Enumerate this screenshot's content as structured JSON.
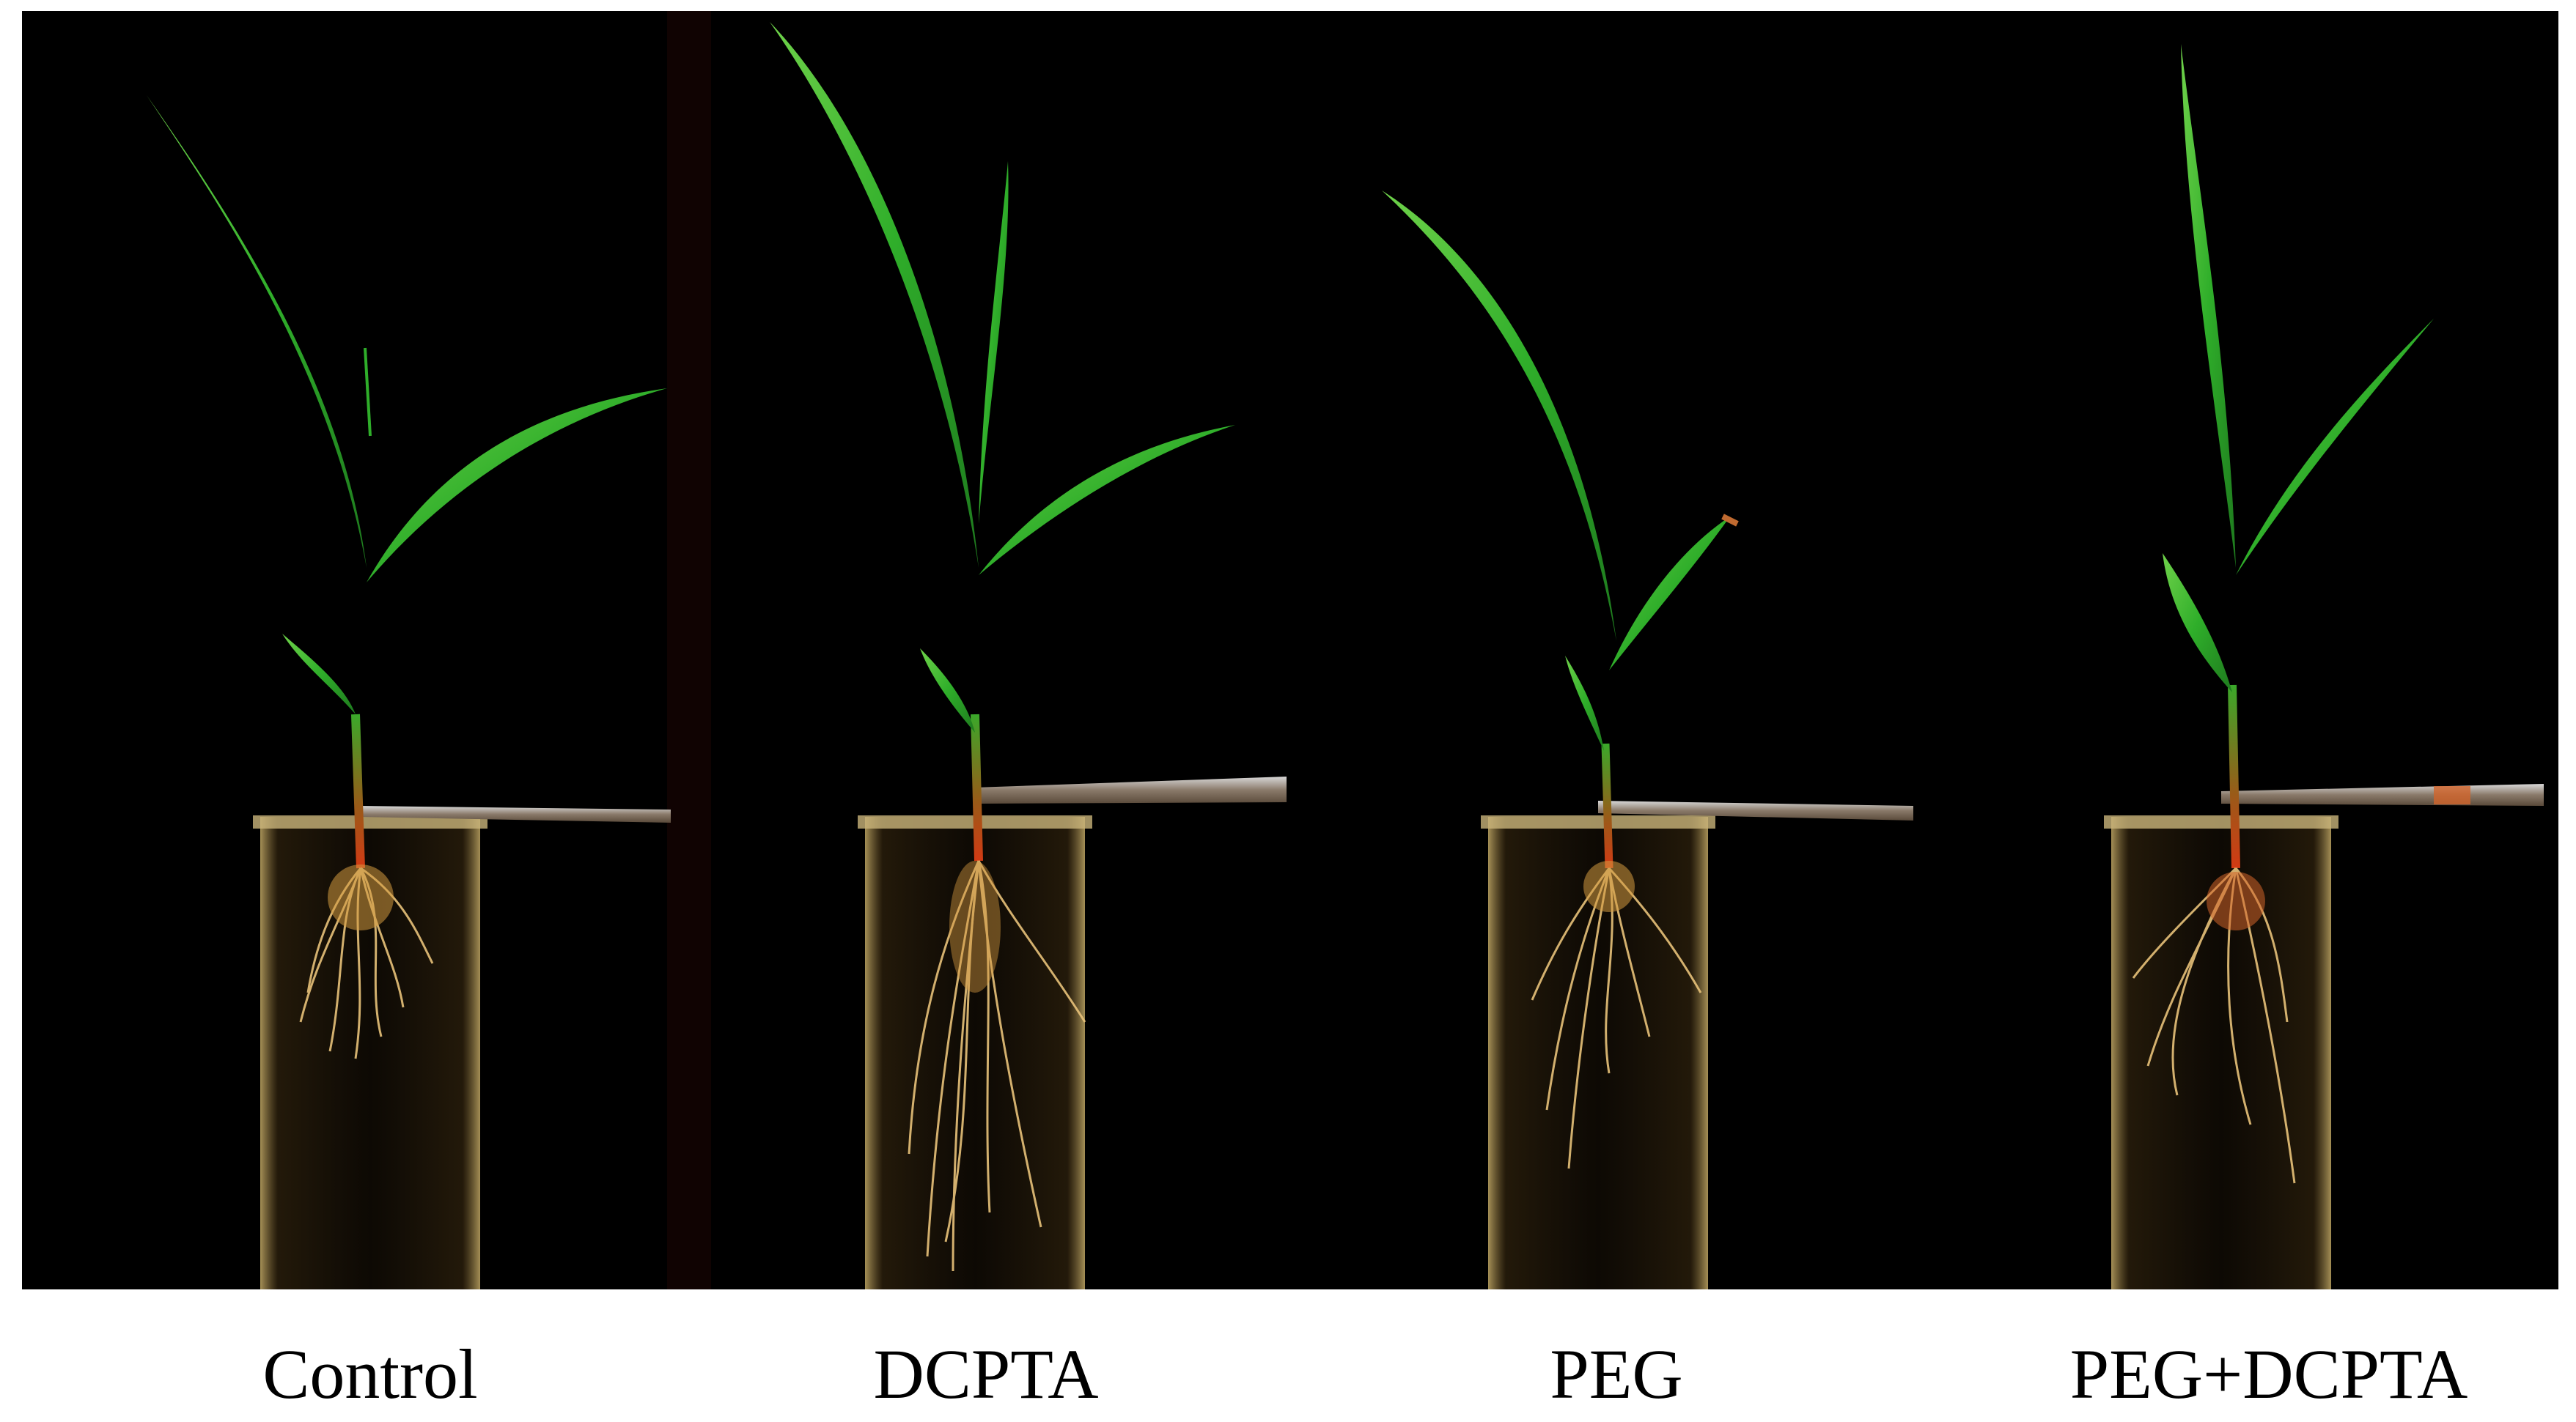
{
  "figure": {
    "panels": [
      {
        "label": "Control"
      },
      {
        "label": "DCPTA"
      },
      {
        "label": "PEG"
      },
      {
        "label": "PEG+DCPTA"
      }
    ]
  },
  "colors": {
    "background": "#000000",
    "leaf": "#2fae2a",
    "stem_base": "#c0401a",
    "root": "#e8c27a",
    "beaker_glass": "#7a6a3a",
    "page": "#ffffff"
  }
}
